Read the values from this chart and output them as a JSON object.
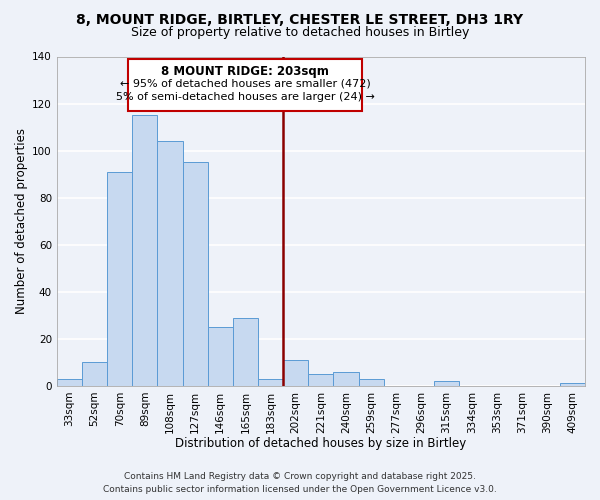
{
  "title": "8, MOUNT RIDGE, BIRTLEY, CHESTER LE STREET, DH3 1RY",
  "subtitle": "Size of property relative to detached houses in Birtley",
  "xlabel": "Distribution of detached houses by size in Birtley",
  "ylabel": "Number of detached properties",
  "bar_labels": [
    "33sqm",
    "52sqm",
    "70sqm",
    "89sqm",
    "108sqm",
    "127sqm",
    "146sqm",
    "165sqm",
    "183sqm",
    "202sqm",
    "221sqm",
    "240sqm",
    "259sqm",
    "277sqm",
    "296sqm",
    "315sqm",
    "334sqm",
    "353sqm",
    "371sqm",
    "390sqm",
    "409sqm"
  ],
  "bar_values": [
    3,
    10,
    91,
    115,
    104,
    95,
    25,
    29,
    3,
    11,
    5,
    6,
    3,
    0,
    0,
    2,
    0,
    0,
    0,
    0,
    1
  ],
  "bar_color": "#c7d9f0",
  "bar_edge_color": "#5b9bd5",
  "vline_color": "#8b0000",
  "vline_x": 8.5,
  "ylim": [
    0,
    140
  ],
  "yticks": [
    0,
    20,
    40,
    60,
    80,
    100,
    120,
    140
  ],
  "annotation_title": "8 MOUNT RIDGE: 203sqm",
  "annotation_line1": "← 95% of detached houses are smaller (472)",
  "annotation_line2": "5% of semi-detached houses are larger (24) →",
  "annotation_box_facecolor": "#ffffff",
  "annotation_box_edgecolor": "#c00000",
  "footer_line1": "Contains HM Land Registry data © Crown copyright and database right 2025.",
  "footer_line2": "Contains public sector information licensed under the Open Government Licence v3.0.",
  "background_color": "#eef2f9",
  "grid_color": "#ffffff",
  "title_fontsize": 10,
  "subtitle_fontsize": 9,
  "axis_label_fontsize": 8.5,
  "tick_fontsize": 7.5,
  "annotation_title_fontsize": 8.5,
  "annotation_body_fontsize": 8,
  "footer_fontsize": 6.5
}
